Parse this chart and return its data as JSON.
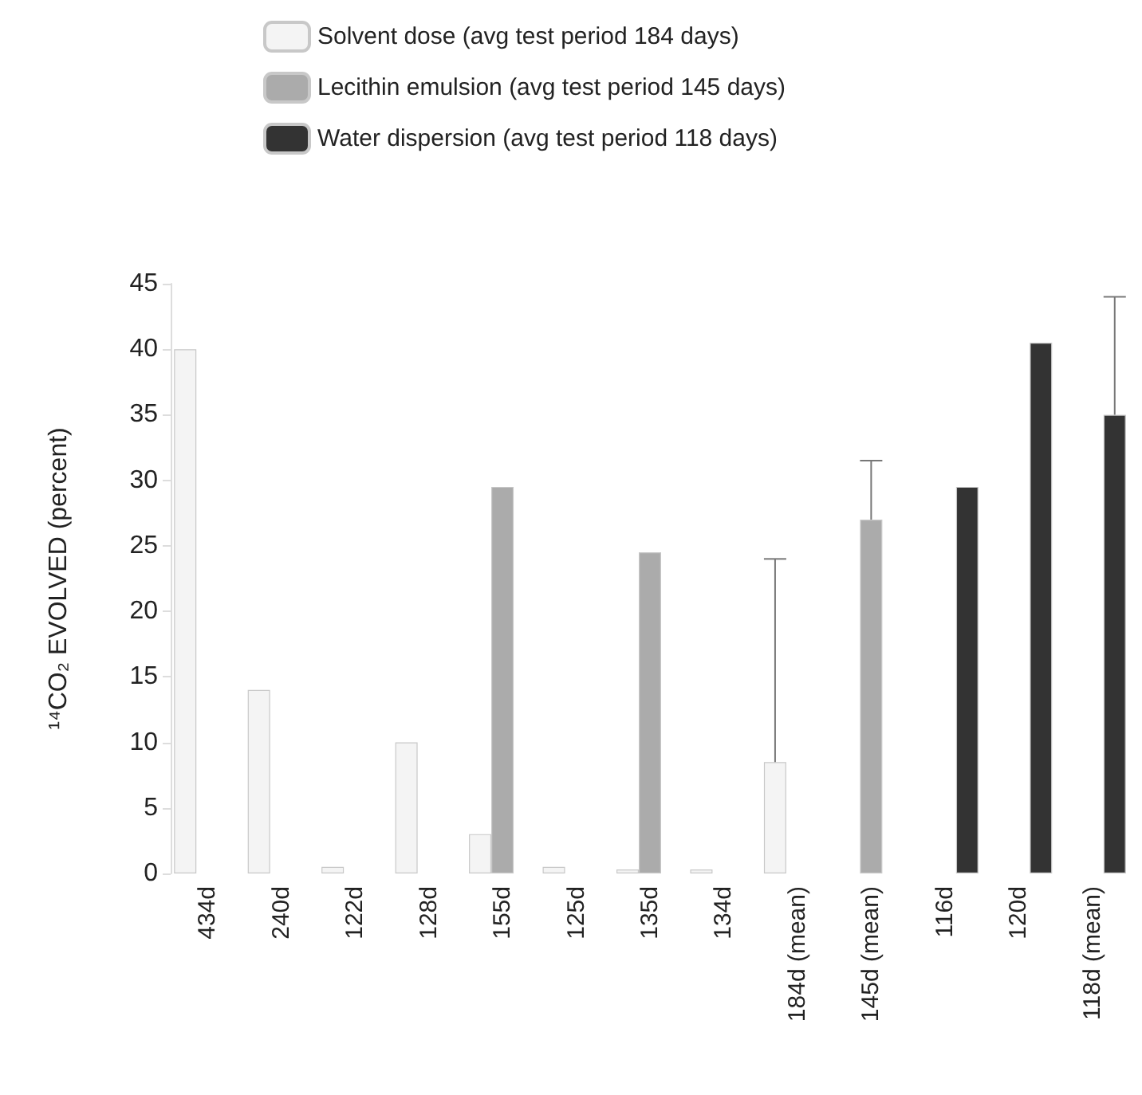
{
  "chart_data": {
    "type": "bar",
    "ylabel": "¹⁴CO₂ EVOLVED (percent)",
    "categories": [
      "434d",
      "240d",
      "122d",
      "128d",
      "155d",
      "125d",
      "135d",
      "134d",
      "184d (mean)",
      "145d (mean)",
      "116d",
      "120d",
      "118d (mean)"
    ],
    "series": [
      {
        "name": "Solvent dose (avg test period 184 days)",
        "color": "#f4f4f4",
        "values": [
          40,
          14,
          0.5,
          10,
          3,
          0.5,
          0.3,
          0.3,
          8.5,
          null,
          null,
          null,
          null
        ],
        "errors": [
          null,
          null,
          null,
          null,
          null,
          null,
          null,
          null,
          [
            8.5,
            24
          ],
          null,
          null,
          null,
          null
        ]
      },
      {
        "name": "Lecithin emulsion (avg test period 145 days)",
        "color": "#ababab",
        "values": [
          null,
          null,
          null,
          null,
          29.5,
          null,
          24.5,
          null,
          null,
          27,
          null,
          null,
          null
        ],
        "errors": [
          null,
          null,
          null,
          null,
          null,
          null,
          null,
          null,
          null,
          [
            27,
            31.5
          ],
          null,
          null,
          null
        ]
      },
      {
        "name": "Water dispersion (avg test period 118 days)",
        "color": "#333333",
        "values": [
          null,
          null,
          null,
          null,
          null,
          null,
          null,
          null,
          null,
          null,
          29.5,
          40.5,
          35
        ],
        "errors": [
          null,
          null,
          null,
          null,
          null,
          null,
          null,
          null,
          null,
          null,
          null,
          null,
          [
            35,
            44
          ]
        ]
      }
    ],
    "ylim": [
      0,
      45
    ],
    "yticks": [
      0,
      5,
      10,
      15,
      20,
      25,
      30,
      35,
      40,
      45
    ],
    "grid": false,
    "legend": "top"
  }
}
